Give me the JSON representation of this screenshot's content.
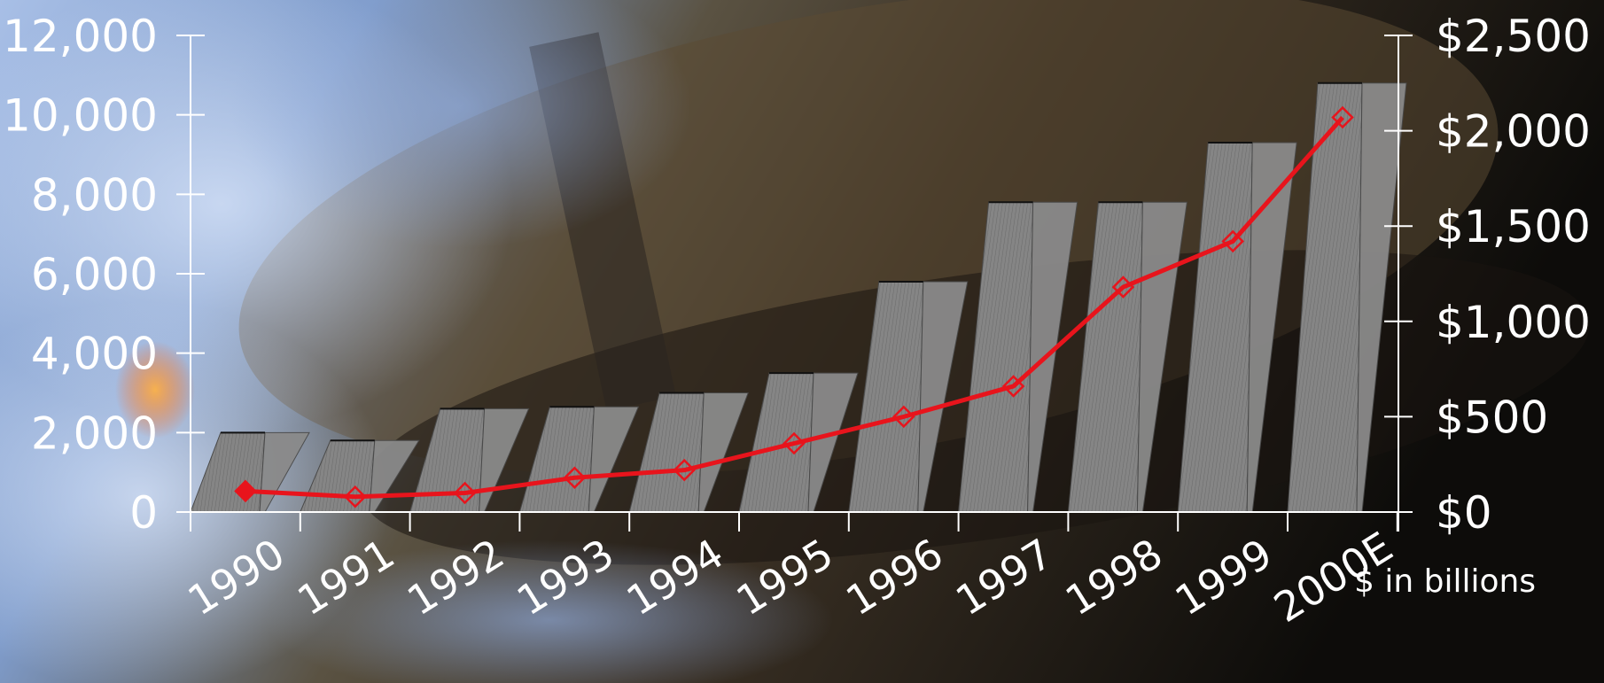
{
  "chart_data": {
    "type": "bar",
    "categories": [
      "1990",
      "1991",
      "1992",
      "1993",
      "1994",
      "1995",
      "1996",
      "1997",
      "1998",
      "1999",
      "2000E"
    ],
    "series": [
      {
        "axis": "left",
        "type": "bar",
        "values": [
          2000,
          1800,
          2600,
          2650,
          3000,
          3500,
          5800,
          7800,
          7800,
          9300,
          10800
        ]
      },
      {
        "axis": "right",
        "type": "line",
        "values": [
          110,
          80,
          100,
          180,
          220,
          360,
          500,
          660,
          1180,
          1420,
          2070
        ]
      }
    ],
    "y_left": {
      "ylim": [
        0,
        12000
      ],
      "ticks": [
        0,
        2000,
        4000,
        6000,
        8000,
        10000,
        12000
      ],
      "tick_labels": [
        "0",
        "2,000",
        "4,000",
        "6,000",
        "8,000",
        "10,000",
        "12,000"
      ]
    },
    "y_right": {
      "ylim": [
        0,
        2500
      ],
      "ticks": [
        0,
        500,
        1000,
        1500,
        2000,
        2500
      ],
      "tick_labels": [
        "$0",
        "$500",
        "$1,000",
        "$1,500",
        "$2,000",
        "$2,500"
      ],
      "unit_label": "$ in billions"
    },
    "colors": {
      "bar": "#8a8a8a",
      "bar_shade": "#6f6f6f",
      "line": "#e8141c",
      "axis": "#ffffff",
      "background_light": "#9bb4de",
      "background_dark": "#0d0c0a"
    },
    "grid": false,
    "legend": "none"
  }
}
